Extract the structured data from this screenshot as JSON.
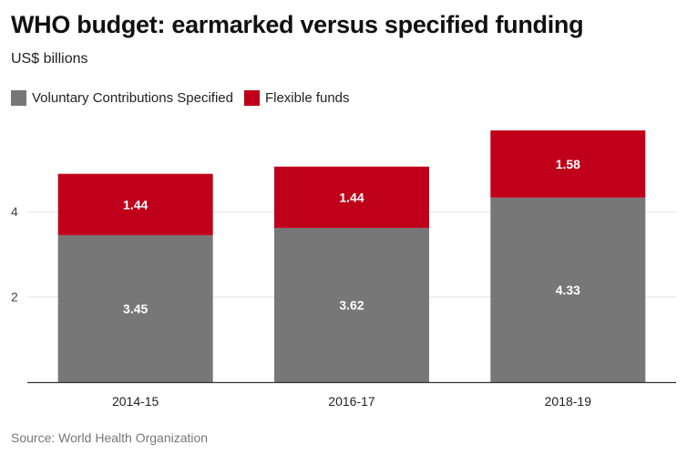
{
  "title": "WHO budget: earmarked versus specified funding",
  "subtitle": "US$ billions",
  "source": "Source: World Health Organization",
  "colors": {
    "specified": "#777777",
    "flexible": "#c0001a",
    "grid": "#e2e2e2",
    "axis": "#333333"
  },
  "legend": [
    {
      "label": "Voluntary Contributions Specified",
      "color": "#777777"
    },
    {
      "label": "Flexible funds",
      "color": "#c0001a"
    }
  ],
  "chart_data": {
    "type": "bar",
    "stacked": true,
    "categories": [
      "2014-15",
      "2016-17",
      "2018-19"
    ],
    "series": [
      {
        "name": "Voluntary Contributions Specified",
        "values": [
          3.45,
          3.62,
          4.33
        ],
        "color": "#777777"
      },
      {
        "name": "Flexible funds",
        "values": [
          1.44,
          1.44,
          1.58
        ],
        "color": "#c0001a"
      }
    ],
    "data_labels": [
      [
        "3.45",
        "3.62",
        "4.33"
      ],
      [
        "1.44",
        "1.44",
        "1.58"
      ]
    ],
    "ylim": [
      0,
      6
    ],
    "yticks": [
      2,
      4
    ],
    "ytick_labels": [
      "2",
      "4"
    ],
    "grid": true,
    "legend_position": "top-left",
    "title": "WHO budget: earmarked versus specified funding",
    "ylabel": "US$ billions",
    "xlabel": ""
  }
}
